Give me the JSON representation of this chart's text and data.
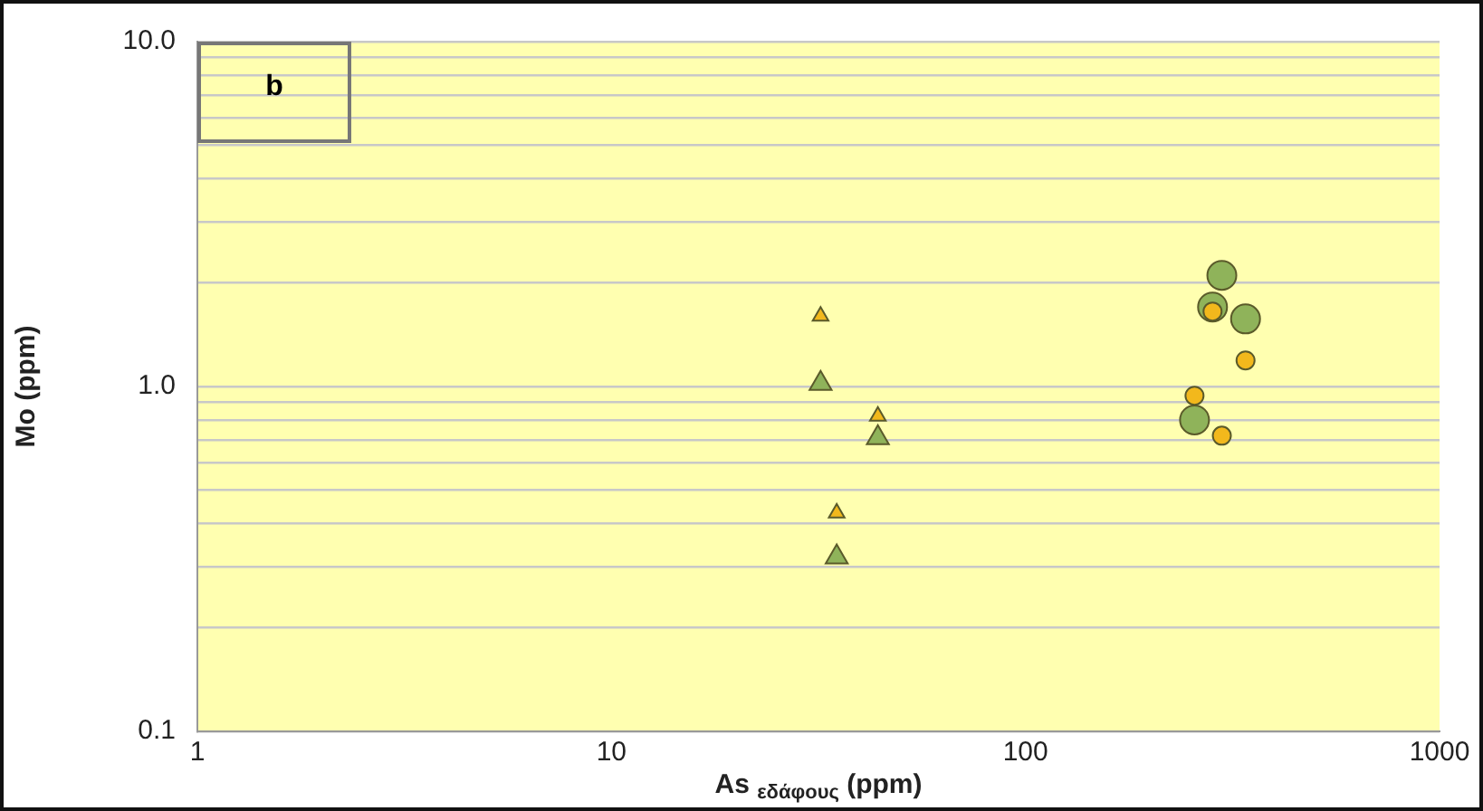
{
  "chart_data": {
    "type": "scatter",
    "xlabel": "As $_{εδάφους}$ (ppm)",
    "ylabel": "Mo (ppm)",
    "annotations": [
      "b"
    ],
    "log": "xy",
    "grid": "y",
    "xlim": [
      1,
      1000
    ],
    "xticks": [
      1,
      10,
      100,
      1000
    ],
    "ylim": [
      0.1,
      10
    ],
    "yticks": [
      {
        "value": 0.1,
        "label": "0.1"
      },
      {
        "value": 0.2,
        "label": null
      },
      {
        "value": 0.3,
        "label": null
      },
      {
        "value": 0.4,
        "label": null
      },
      {
        "value": 0.5,
        "label": null
      },
      {
        "value": 0.6,
        "label": null
      },
      {
        "value": 0.7,
        "label": null
      },
      {
        "value": 0.8,
        "label": null
      },
      {
        "value": 0.9,
        "label": null
      },
      {
        "value": 1,
        "label": "1.0"
      },
      {
        "value": 2,
        "label": null
      },
      {
        "value": 3,
        "label": null
      },
      {
        "value": 4,
        "label": null
      },
      {
        "value": 5,
        "label": null
      },
      {
        "value": 6,
        "label": null
      },
      {
        "value": 7,
        "label": null
      },
      {
        "value": 8,
        "label": null
      },
      {
        "value": 9,
        "label": null
      },
      {
        "value": 10,
        "label": "10.0"
      }
    ],
    "series": [
      {
        "color": "#8fb35a",
        "marker": "triangle",
        "x": [
          32,
          35,
          44
        ],
        "values": [
          1.02,
          0.32,
          0.71
        ]
      },
      {
        "color": "#f2b81c",
        "marker": "triangle",
        "x": [
          32,
          35,
          44
        ],
        "values": [
          1.6,
          0.43,
          0.82
        ]
      },
      {
        "color": "#8fb35a",
        "marker": "circle",
        "x": [
          298,
          283,
          340,
          256
        ],
        "values": [
          2.1,
          1.7,
          1.57,
          0.8
        ]
      },
      {
        "color": "#f2b81c",
        "marker": "circle",
        "x": [
          283,
          340,
          256,
          298
        ],
        "values": [
          1.65,
          1.19,
          0.94,
          0.72
        ]
      }
    ]
  }
}
